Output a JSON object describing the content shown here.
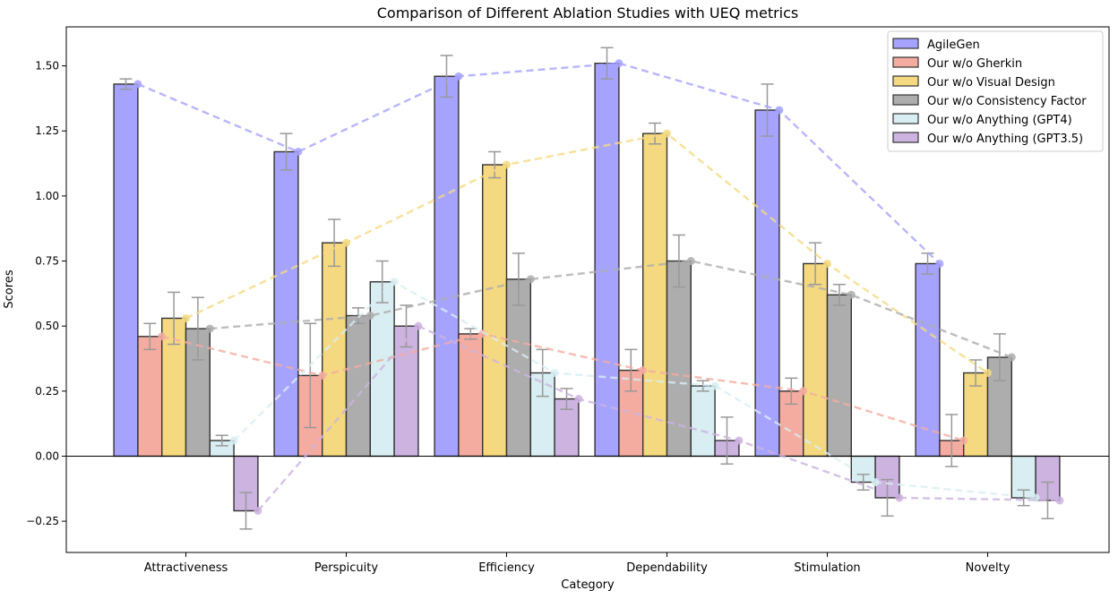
{
  "chart_data": {
    "type": "bar",
    "title": "Comparison of Different Ablation Studies with UEQ metrics",
    "xlabel": "Category",
    "ylabel": "Scores",
    "ylim": [
      -0.37,
      1.65
    ],
    "yticks": [
      -0.25,
      0.0,
      0.25,
      0.5,
      0.75,
      1.0,
      1.25,
      1.5
    ],
    "ytick_labels": [
      "−0.25",
      "0.00",
      "0.25",
      "0.50",
      "0.75",
      "1.00",
      "1.25",
      "1.50"
    ],
    "categories": [
      "Attractiveness",
      "Perspicuity",
      "Efficiency",
      "Dependability",
      "Stimulation",
      "Novelty"
    ],
    "legend_position": "top-right",
    "grid": false,
    "zero_line": true,
    "series": [
      {
        "name": "AgileGen",
        "color": "#a6a3ff",
        "values": [
          1.43,
          1.17,
          1.46,
          1.51,
          1.33,
          0.74
        ],
        "errors": [
          0.02,
          0.07,
          0.08,
          0.06,
          0.1,
          0.04
        ]
      },
      {
        "name": "Our w/o Gherkin",
        "color": "#f4aba0",
        "values": [
          0.46,
          0.31,
          0.47,
          0.33,
          0.25,
          0.06
        ],
        "errors": [
          0.05,
          0.2,
          0.02,
          0.08,
          0.05,
          0.1
        ]
      },
      {
        "name": "Our w/o Visual Design",
        "color": "#f5d980",
        "values": [
          0.53,
          0.82,
          1.12,
          1.24,
          0.74,
          0.32
        ],
        "errors": [
          0.1,
          0.09,
          0.05,
          0.04,
          0.08,
          0.05
        ]
      },
      {
        "name": "Our w/o Consistency Factor",
        "color": "#adadad",
        "values": [
          0.49,
          0.54,
          0.68,
          0.75,
          0.62,
          0.38
        ],
        "errors": [
          0.12,
          0.03,
          0.1,
          0.1,
          0.04,
          0.09
        ]
      },
      {
        "name": "Our w/o Anything (GPT4)",
        "color": "#d8eef2",
        "values": [
          0.06,
          0.67,
          0.32,
          0.27,
          -0.1,
          -0.16
        ],
        "errors": [
          0.02,
          0.08,
          0.09,
          0.02,
          0.03,
          0.03
        ]
      },
      {
        "name": "Our w/o Anything (GPT3.5)",
        "color": "#ccb3e0",
        "values": [
          -0.21,
          0.5,
          0.22,
          0.06,
          -0.16,
          -0.17
        ],
        "errors": [
          0.07,
          0.08,
          0.04,
          0.09,
          0.07,
          0.07
        ]
      }
    ]
  }
}
